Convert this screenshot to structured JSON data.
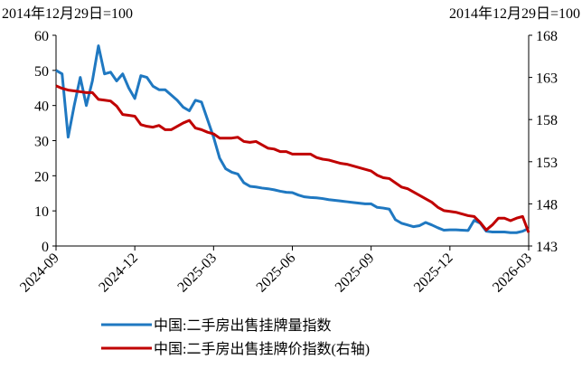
{
  "chart_data": {
    "type": "line",
    "y_label": "2014年12月29日=100",
    "y2_label": "2014年12月29日=100",
    "categories": [
      "2024-09",
      null,
      null,
      null,
      null,
      null,
      null,
      null,
      null,
      null,
      null,
      null,
      null,
      "2024-12",
      null,
      null,
      null,
      null,
      null,
      null,
      null,
      null,
      null,
      null,
      null,
      null,
      "2025-03",
      null,
      null,
      null,
      null,
      null,
      null,
      null,
      null,
      null,
      null,
      null,
      null,
      "2025-06",
      null,
      null,
      null,
      null,
      null,
      null,
      null,
      null,
      null,
      null,
      null,
      null,
      "2025-09",
      null,
      null,
      null,
      null,
      null,
      null,
      null,
      null,
      null,
      null,
      null,
      null,
      "2025-12",
      null,
      null,
      null,
      null,
      null,
      null,
      null,
      null,
      null,
      null,
      null,
      null,
      "2026-03"
    ],
    "series": [
      {
        "name": "中国:二手房出售挂牌量指数",
        "color": "#1f78c1",
        "axis": "y",
        "values": [
          50,
          49,
          31,
          40,
          48,
          40,
          47,
          57,
          49,
          49.5,
          47,
          49,
          45,
          42,
          48.5,
          48,
          45.5,
          44.5,
          44.5,
          43,
          41.5,
          39.5,
          38.5,
          41.5,
          41,
          36,
          31,
          25,
          22,
          21,
          20.5,
          18,
          17,
          16.8,
          16.5,
          16.3,
          16,
          15.6,
          15.3,
          15.2,
          14.5,
          14,
          13.8,
          13.7,
          13.5,
          13.2,
          13,
          12.8,
          12.6,
          12.4,
          12.2,
          12,
          12,
          11,
          10.8,
          10.5,
          7.5,
          6.5,
          6,
          5.5,
          5.8,
          6.7,
          6,
          5.2,
          4.5,
          4.6,
          4.6,
          4.5,
          4.4,
          7.3,
          6.5,
          4.2,
          4,
          4,
          4,
          3.8,
          3.8,
          4.2,
          5
        ]
      },
      {
        "name": "中国:二手房出售挂牌价指数(右轴)",
        "color": "#c00000",
        "axis": "y2",
        "values": [
          162,
          161.7,
          161.5,
          161.4,
          161.3,
          161.2,
          161.2,
          160.4,
          160.3,
          160.2,
          159.6,
          158.6,
          158.5,
          158.4,
          157.4,
          157.2,
          157.1,
          157.3,
          156.8,
          156.8,
          157.2,
          157.6,
          157.9,
          157,
          156.8,
          156.5,
          156.3,
          155.8,
          155.8,
          155.8,
          155.9,
          155.4,
          155.3,
          155.4,
          155,
          154.6,
          154.5,
          154.2,
          154.2,
          153.9,
          153.9,
          153.9,
          153.9,
          153.5,
          153.3,
          153.2,
          153,
          152.8,
          152.7,
          152.5,
          152.3,
          152.1,
          151.9,
          151.4,
          151.1,
          151,
          150.5,
          150,
          149.8,
          149.4,
          149,
          148.6,
          148.2,
          147.6,
          147.2,
          147.1,
          147,
          146.8,
          146.6,
          146.5,
          145.8,
          144.9,
          145.5,
          146.3,
          146.3,
          146,
          146.3,
          146.5,
          144.6
        ]
      }
    ],
    "ylim": [
      0,
      60
    ],
    "yticks": [
      0,
      10,
      20,
      30,
      40,
      50,
      60
    ],
    "y2lim": [
      143,
      168
    ],
    "y2ticks": [
      143,
      148,
      153,
      158,
      163,
      168
    ],
    "legend": "bottom"
  }
}
